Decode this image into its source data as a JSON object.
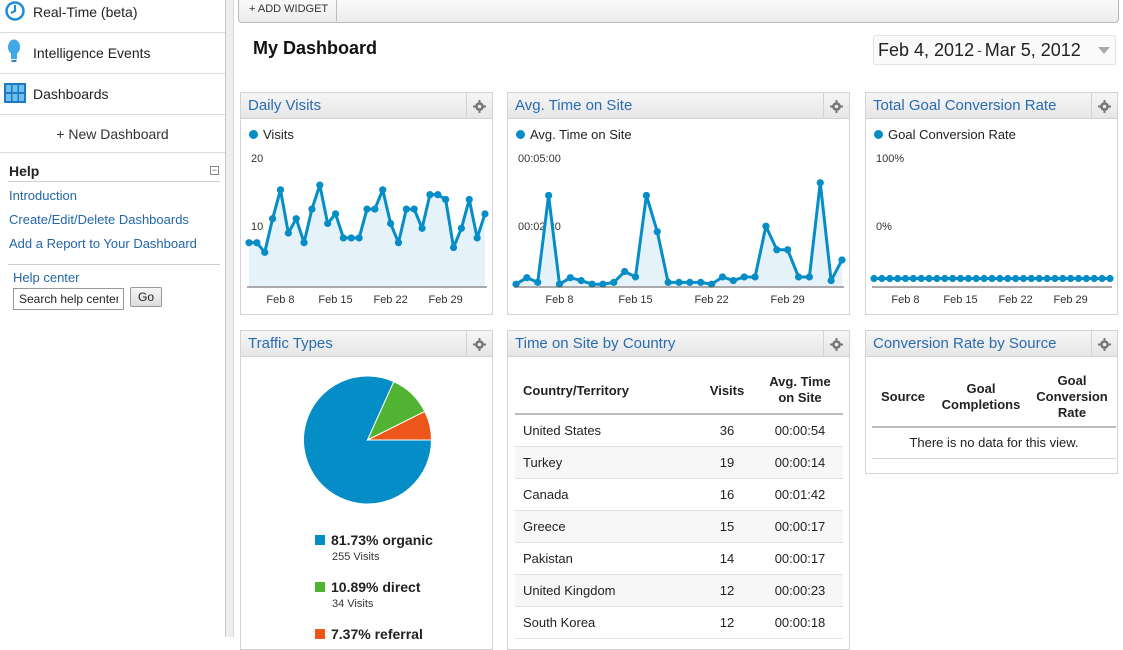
{
  "sidebar": {
    "nav": [
      {
        "label": "Real-Time (beta)",
        "icon": "realtime-clock-icon"
      },
      {
        "label": "Intelligence Events",
        "icon": "lightbulb-icon"
      },
      {
        "label": "Dashboards",
        "icon": "dashboard-grid-icon"
      }
    ],
    "new_dashboard": "+ New Dashboard",
    "help": {
      "heading": "Help",
      "collapse_symbol": "−",
      "links": [
        "Introduction",
        "Create/Edit/Delete Dashboards",
        "Add a Report to Your Dashboard"
      ],
      "help_center": "Help center",
      "search_value": "Search help center",
      "go_label": "Go"
    }
  },
  "toolbar": {
    "add_widget": "+ ADD WIDGET"
  },
  "page": {
    "title": "My Dashboard",
    "date_start": "Feb 4, 2012",
    "date_sep": "-",
    "date_end": "Mar 5, 2012"
  },
  "colors": {
    "primary": "#058dc7",
    "direct": "#50b432",
    "referral": "#ed561b",
    "link": "#2a6cb0",
    "area_fill": "#e6f2f9"
  },
  "widgets": {
    "daily_visits": {
      "title": "Daily Visits",
      "legend": "Visits"
    },
    "avg_time": {
      "title": "Avg. Time on Site",
      "legend": "Avg. Time on Site"
    },
    "goal_rate": {
      "title": "Total Goal Conversion Rate",
      "legend": "Goal Conversion Rate"
    },
    "traffic_types": {
      "title": "Traffic Types",
      "items": [
        {
          "label": "81.73% organic",
          "visits": "255 Visits",
          "color": "#058dc7"
        },
        {
          "label": "10.89% direct",
          "visits": "34 Visits",
          "color": "#50b432"
        },
        {
          "label": "7.37% referral",
          "visits": "",
          "color": "#ed561b"
        }
      ]
    },
    "time_by_country": {
      "title": "Time on Site by Country",
      "columns": [
        "Country/Territory",
        "Visits",
        "Avg. Time on Site"
      ],
      "rows": [
        {
          "country": "United States",
          "visits": "36",
          "time": "00:00:54"
        },
        {
          "country": "Turkey",
          "visits": "19",
          "time": "00:00:14"
        },
        {
          "country": "Canada",
          "visits": "16",
          "time": "00:01:42"
        },
        {
          "country": "Greece",
          "visits": "15",
          "time": "00:00:17"
        },
        {
          "country": "Pakistan",
          "visits": "14",
          "time": "00:00:17"
        },
        {
          "country": "United Kingdom",
          "visits": "12",
          "time": "00:00:23"
        },
        {
          "country": "South Korea",
          "visits": "12",
          "time": "00:00:18"
        }
      ]
    },
    "conv_by_source": {
      "title": "Conversion Rate by Source",
      "columns": [
        "Source",
        "Goal Completions",
        "Goal Conversion Rate"
      ],
      "empty": "There is no data for this view."
    }
  },
  "chart_data": [
    {
      "type": "area",
      "series": [
        {
          "name": "Visits",
          "values": [
            9,
            9,
            7,
            14,
            20,
            11,
            14,
            9,
            16,
            21,
            13,
            15,
            10,
            10,
            10,
            16,
            16,
            20,
            13,
            9,
            16,
            16,
            12,
            19,
            19,
            18,
            8,
            12,
            18,
            10,
            15
          ]
        }
      ],
      "x_ticks": [
        "Feb 8",
        "Feb 15",
        "Feb 22",
        "Feb 29"
      ],
      "y_ticks": [
        "20",
        "10"
      ],
      "ylim": [
        0,
        26
      ]
    },
    {
      "type": "area",
      "series": [
        {
          "name": "Avg. Time on Site",
          "values": [
            5,
            23,
            10,
            250,
            5,
            23,
            15,
            5,
            5,
            10,
            40,
            25,
            250,
            150,
            10,
            10,
            10,
            10,
            5,
            25,
            15,
            25,
            25,
            165,
            100,
            100,
            25,
            25,
            285,
            15,
            72
          ]
        }
      ],
      "y_ticks": [
        "00:05:00",
        "00:02:30"
      ],
      "x_ticks": [
        "Feb 8",
        "Feb 15",
        "Feb 22",
        "Feb 29"
      ],
      "ylim_seconds": [
        0,
        345
      ]
    },
    {
      "type": "line",
      "series": [
        {
          "name": "Goal Conversion Rate",
          "values": [
            0,
            0,
            0,
            0,
            0,
            0,
            0,
            0,
            0,
            0,
            0,
            0,
            0,
            0,
            0,
            0,
            0,
            0,
            0,
            0,
            0,
            0,
            0,
            0,
            0,
            0,
            0,
            0,
            0,
            0,
            0
          ]
        }
      ],
      "y_ticks": [
        "100%",
        "0%"
      ],
      "x_ticks": [
        "Feb 8",
        "Feb 15",
        "Feb 22",
        "Feb 29"
      ],
      "ylim": [
        -6,
        94
      ]
    },
    {
      "type": "pie",
      "categories": [
        "organic",
        "direct",
        "referral"
      ],
      "values": [
        81.73,
        10.89,
        7.37
      ]
    }
  ]
}
